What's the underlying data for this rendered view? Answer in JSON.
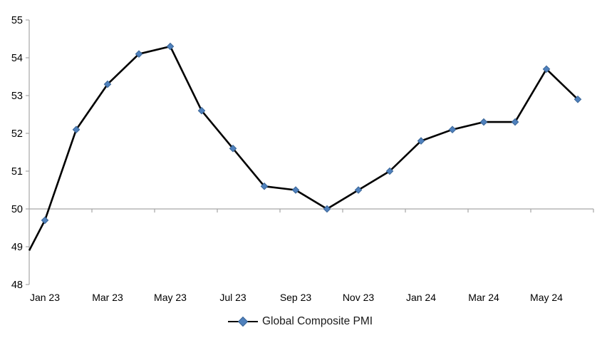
{
  "chart_data": {
    "type": "line",
    "title": "",
    "categories": [
      "Jan 23",
      "Feb 23",
      "Mar 23",
      "Apr 23",
      "May 23",
      "Jun 23",
      "Jul 23",
      "Aug 23",
      "Sep 23",
      "Oct 23",
      "Nov 23",
      "Dec 23",
      "Jan 24",
      "Feb 24",
      "Mar 24",
      "Apr 24",
      "May 24",
      "Jun 24"
    ],
    "series": [
      {
        "name": "Global Composite PMI",
        "values": [
          49.7,
          52.1,
          53.3,
          54.1,
          54.3,
          52.6,
          51.6,
          50.6,
          50.5,
          50.0,
          50.5,
          51.0,
          51.8,
          52.1,
          52.3,
          52.3,
          53.7,
          52.9
        ],
        "edge_start_value": 48.9
      }
    ],
    "x_tick_labels": [
      "Jan 23",
      "Mar 23",
      "May 23",
      "Jul 23",
      "Sep 23",
      "Nov 23",
      "Jan 24",
      "Mar 24",
      "May 24"
    ],
    "x_label_interval": 2,
    "y_ticks": [
      48,
      49,
      50,
      51,
      52,
      53,
      54,
      55
    ],
    "ylim": [
      48,
      55
    ],
    "x_axis_cross_value": 50,
    "grid": "off",
    "legend": {
      "label": "Global Composite PMI",
      "position": "bottom-center"
    },
    "colors": {
      "line": "#000000",
      "marker_fill": "#4F81BD",
      "marker_stroke": "#3A6596",
      "axis": "#A6A6A6",
      "tick_text": "#000000"
    }
  }
}
